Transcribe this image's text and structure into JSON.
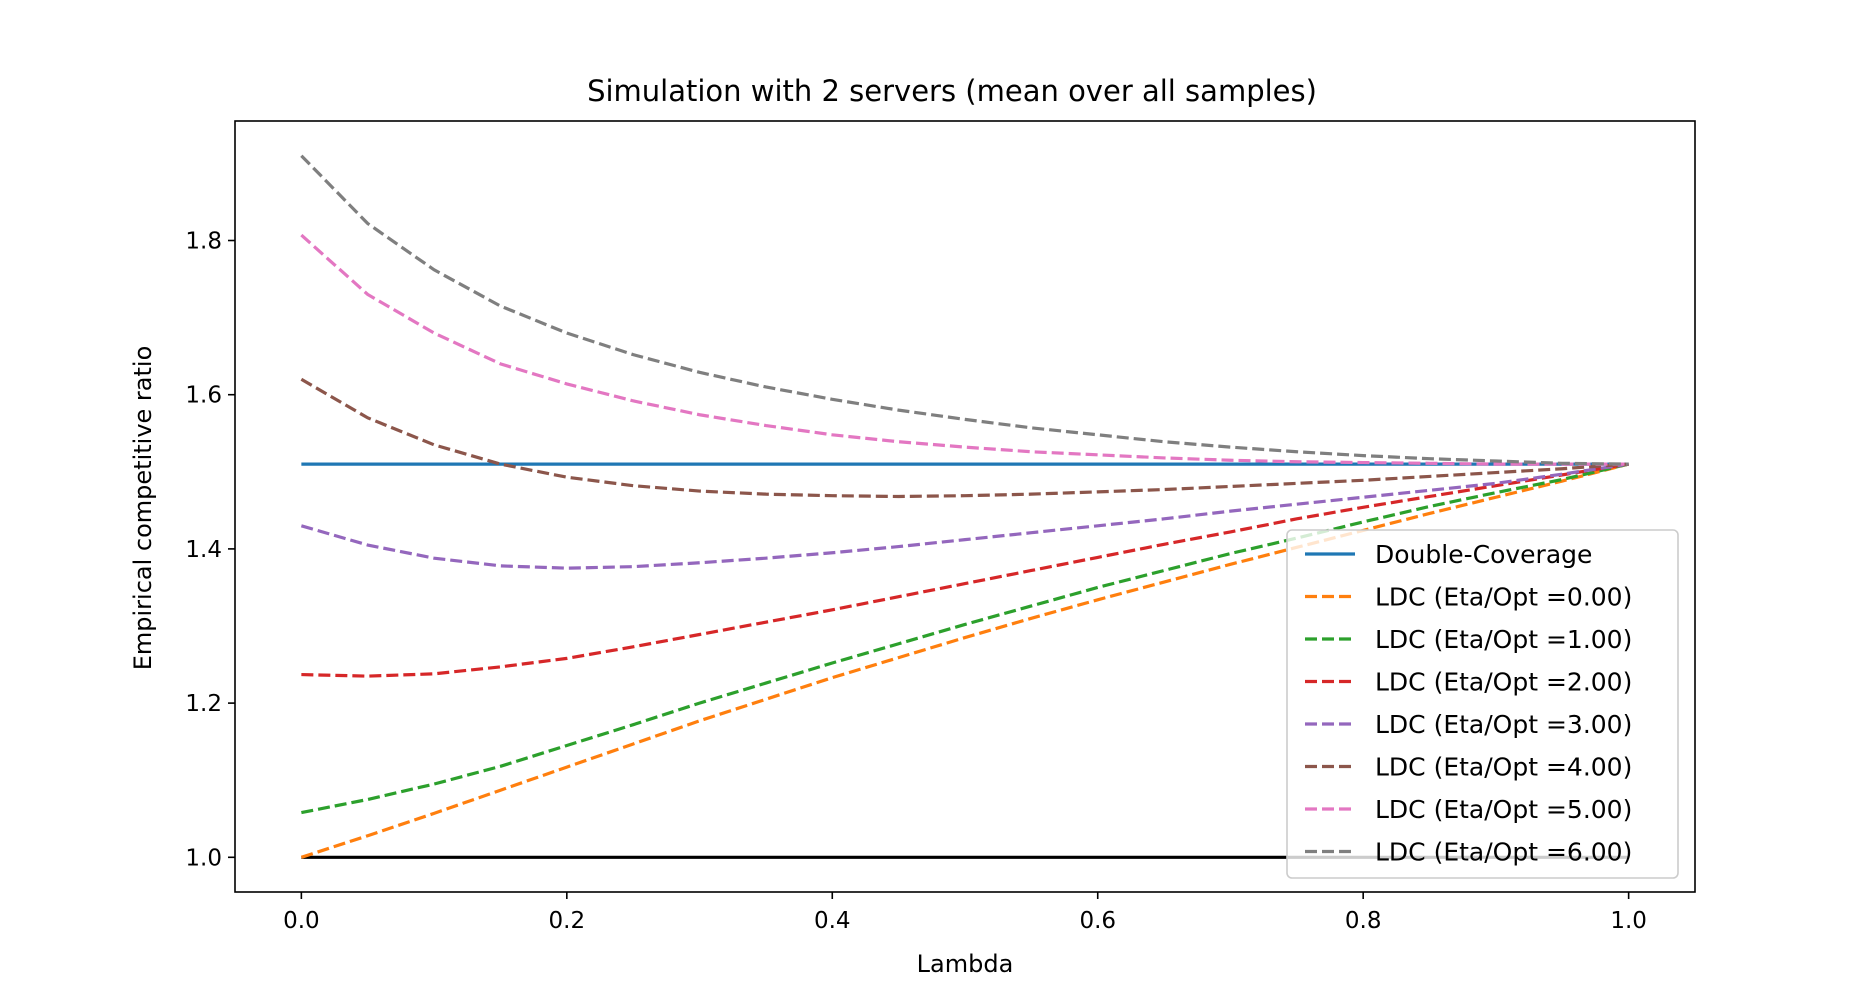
{
  "chart_data": {
    "type": "line",
    "title": "Simulation with 2 servers (mean over all samples)",
    "xlabel": "Lambda",
    "ylabel": "Empirical competitive ratio",
    "xlim": [
      -0.05,
      1.05
    ],
    "ylim": [
      0.955,
      1.955
    ],
    "xticks": [
      "0.0",
      "0.2",
      "0.4",
      "0.6",
      "0.8",
      "1.0"
    ],
    "yticks": [
      "1.0",
      "1.2",
      "1.4",
      "1.6",
      "1.8"
    ],
    "grid": false,
    "legend_position": "lower-right",
    "x": [
      0.0,
      0.05,
      0.1,
      0.15,
      0.2,
      0.25,
      0.3,
      0.35,
      0.4,
      0.45,
      0.5,
      0.55,
      0.6,
      0.65,
      0.7,
      0.75,
      0.8,
      0.85,
      0.9,
      0.95,
      1.0
    ],
    "baseline": {
      "y": 1.0,
      "color": "#000000"
    },
    "series": [
      {
        "name": "Double-Coverage",
        "color": "#1f77b4",
        "style": "solid",
        "values": [
          1.51,
          1.51,
          1.51,
          1.51,
          1.51,
          1.51,
          1.51,
          1.51,
          1.51,
          1.51,
          1.51,
          1.51,
          1.51,
          1.51,
          1.51,
          1.51,
          1.51,
          1.51,
          1.51,
          1.51,
          1.51
        ]
      },
      {
        "name": "LDC (Eta/Opt =0.00)",
        "color": "#ff7f0e",
        "style": "dashed",
        "values": [
          1.0,
          1.028,
          1.057,
          1.087,
          1.117,
          1.147,
          1.177,
          1.205,
          1.233,
          1.259,
          1.285,
          1.31,
          1.334,
          1.357,
          1.38,
          1.402,
          1.424,
          1.446,
          1.467,
          1.488,
          1.51
        ]
      },
      {
        "name": "LDC (Eta/Opt =1.00)",
        "color": "#2ca02c",
        "style": "dashed",
        "values": [
          1.058,
          1.075,
          1.095,
          1.118,
          1.145,
          1.172,
          1.2,
          1.226,
          1.252,
          1.277,
          1.302,
          1.326,
          1.35,
          1.372,
          1.394,
          1.414,
          1.435,
          1.455,
          1.473,
          1.49,
          1.51
        ]
      },
      {
        "name": "LDC (Eta/Opt =2.00)",
        "color": "#d62728",
        "style": "dashed",
        "values": [
          1.237,
          1.235,
          1.238,
          1.247,
          1.258,
          1.273,
          1.289,
          1.305,
          1.321,
          1.338,
          1.355,
          1.372,
          1.389,
          1.406,
          1.422,
          1.439,
          1.454,
          1.468,
          1.482,
          1.496,
          1.51
        ]
      },
      {
        "name": "LDC (Eta/Opt =3.00)",
        "color": "#9467bd",
        "style": "dashed",
        "values": [
          1.43,
          1.405,
          1.388,
          1.378,
          1.375,
          1.377,
          1.382,
          1.388,
          1.395,
          1.403,
          1.412,
          1.421,
          1.43,
          1.439,
          1.449,
          1.458,
          1.467,
          1.476,
          1.485,
          1.497,
          1.51
        ]
      },
      {
        "name": "LDC (Eta/Opt =4.00)",
        "color": "#8c564b",
        "style": "dashed",
        "values": [
          1.62,
          1.57,
          1.535,
          1.51,
          1.493,
          1.482,
          1.475,
          1.471,
          1.469,
          1.468,
          1.469,
          1.471,
          1.474,
          1.477,
          1.481,
          1.485,
          1.489,
          1.494,
          1.499,
          1.504,
          1.51
        ]
      },
      {
        "name": "LDC (Eta/Opt =5.00)",
        "color": "#e377c2",
        "style": "dashed",
        "values": [
          1.807,
          1.73,
          1.68,
          1.64,
          1.614,
          1.592,
          1.574,
          1.56,
          1.548,
          1.539,
          1.532,
          1.526,
          1.522,
          1.518,
          1.515,
          1.513,
          1.512,
          1.511,
          1.51,
          1.51,
          1.51
        ]
      },
      {
        "name": "LDC (Eta/Opt =6.00)",
        "color": "#7f7f7f",
        "style": "dashed",
        "values": [
          1.91,
          1.822,
          1.762,
          1.715,
          1.68,
          1.652,
          1.629,
          1.61,
          1.594,
          1.58,
          1.568,
          1.557,
          1.548,
          1.539,
          1.532,
          1.526,
          1.521,
          1.517,
          1.514,
          1.511,
          1.51
        ]
      }
    ]
  }
}
